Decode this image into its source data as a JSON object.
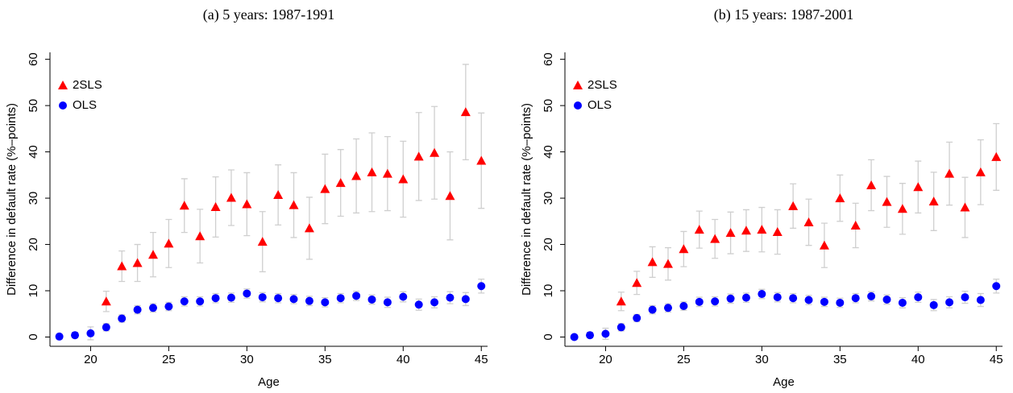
{
  "chart_data": [
    {
      "type": "scatter",
      "title": "(a) 5 years: 1987-1991",
      "x_label": "Age",
      "y_label": "Difference in default rate (%–points)",
      "x": [
        18,
        19,
        20,
        21,
        22,
        23,
        24,
        25,
        26,
        27,
        28,
        29,
        30,
        31,
        32,
        33,
        34,
        35,
        36,
        37,
        38,
        39,
        40,
        41,
        42,
        43,
        44,
        45
      ],
      "xlim": [
        17.4,
        45.4
      ],
      "xticks": [
        20,
        25,
        30,
        35,
        40,
        45
      ],
      "ylim": [
        -2,
        61.5
      ],
      "yticks": [
        0,
        10,
        20,
        30,
        40,
        50,
        60
      ],
      "legend": "top-left",
      "error_color": "#cfcfcf",
      "series": [
        {
          "name": "2SLS",
          "color": "#ff0000",
          "marker": "triangle",
          "values": [
            null,
            null,
            null,
            7.7,
            15.3,
            16,
            17.8,
            20.2,
            28.4,
            21.8,
            28.1,
            30.1,
            28.7,
            20.6,
            30.7,
            28.5,
            23.5,
            32,
            33.3,
            34.8,
            35.6,
            35.3,
            34.1,
            39,
            39.8,
            30.5,
            48.6,
            38.1
          ],
          "errors": [
            null,
            null,
            null,
            2.2,
            3.3,
            4,
            4.8,
            5.2,
            5.8,
            5.8,
            6.5,
            6,
            6.8,
            6.5,
            6.5,
            7,
            6.7,
            7.5,
            7.2,
            8,
            8.5,
            8,
            8.2,
            9.5,
            10,
            9.5,
            10.3,
            10.3
          ]
        },
        {
          "name": "OLS",
          "color": "#0000ff",
          "marker": "circle",
          "values": [
            0.1,
            0.4,
            0.8,
            2.1,
            4,
            5.9,
            6.3,
            6.6,
            7.7,
            7.7,
            8.4,
            8.5,
            9.4,
            8.6,
            8.4,
            8.2,
            7.8,
            7.5,
            8.4,
            8.9,
            8.1,
            7.5,
            8.7,
            7,
            7.5,
            8.5,
            8.2,
            11
          ],
          "errors": [
            0.5,
            0.6,
            1.4,
            0.8,
            0.8,
            0.9,
            0.9,
            0.9,
            1,
            1,
            1,
            1,
            1,
            1,
            1,
            1,
            1,
            1,
            1,
            1,
            1,
            1.1,
            1.1,
            1.2,
            1.2,
            1.3,
            1.4,
            1.5
          ]
        }
      ]
    },
    {
      "type": "scatter",
      "title": "(b) 15 years: 1987-2001",
      "x_label": "Age",
      "y_label": "Difference in default rate (%–points)",
      "x": [
        18,
        19,
        20,
        21,
        22,
        23,
        24,
        25,
        26,
        27,
        28,
        29,
        30,
        31,
        32,
        33,
        34,
        35,
        36,
        37,
        38,
        39,
        40,
        41,
        42,
        43,
        44,
        45
      ],
      "xlim": [
        17.4,
        45.4
      ],
      "xticks": [
        20,
        25,
        30,
        35,
        40,
        45
      ],
      "ylim": [
        -2,
        61.5
      ],
      "yticks": [
        0,
        10,
        20,
        30,
        40,
        50,
        60
      ],
      "legend": "top-left",
      "error_color": "#cfcfcf",
      "series": [
        {
          "name": "2SLS",
          "color": "#ff0000",
          "marker": "triangle",
          "values": [
            null,
            null,
            null,
            7.7,
            11.7,
            16.2,
            15.8,
            19,
            23.2,
            21.2,
            22.5,
            23,
            23.2,
            22.7,
            28.3,
            24.8,
            19.8,
            30,
            24.1,
            32.8,
            29.2,
            27.7,
            32.4,
            29.3,
            35.3,
            28,
            35.6,
            38.9
          ],
          "errors": [
            null,
            null,
            null,
            2,
            2.5,
            3.3,
            3.5,
            3.8,
            4,
            4.2,
            4.5,
            4.5,
            4.8,
            4.8,
            4.8,
            5,
            4.8,
            5,
            4.8,
            5.5,
            5.5,
            5.5,
            5.6,
            6.3,
            6.8,
            6.5,
            7,
            7.2
          ]
        },
        {
          "name": "OLS",
          "color": "#0000ff",
          "marker": "circle",
          "values": [
            0,
            0.4,
            0.7,
            2.1,
            4.1,
            5.9,
            6.3,
            6.7,
            7.6,
            7.7,
            8.3,
            8.5,
            9.3,
            8.6,
            8.4,
            8,
            7.6,
            7.4,
            8.4,
            8.8,
            8.1,
            7.4,
            8.6,
            6.9,
            7.5,
            8.6,
            8,
            11
          ],
          "errors": [
            0.5,
            0.6,
            1.2,
            0.8,
            0.8,
            0.9,
            0.9,
            0.9,
            1,
            1,
            1,
            1,
            1,
            1,
            1,
            1,
            1,
            1,
            1,
            1,
            1,
            1.1,
            1.1,
            1.2,
            1.2,
            1.3,
            1.4,
            1.5
          ]
        }
      ]
    }
  ]
}
